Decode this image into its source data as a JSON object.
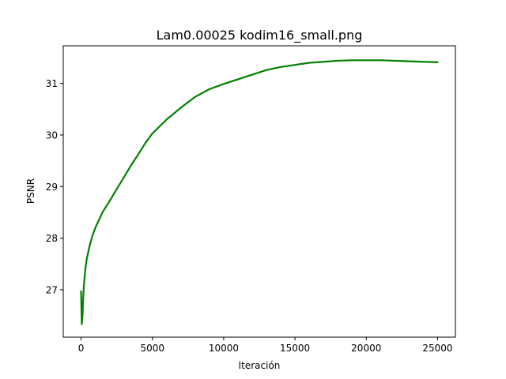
{
  "chart_data": {
    "type": "line",
    "title": "Lam0.00025 kodim16_small.png",
    "xlabel": "Iteración",
    "ylabel": "PSNR",
    "xlim": [
      -1250,
      26250
    ],
    "ylim": [
      26.08,
      31.73
    ],
    "xticks": [
      0,
      5000,
      10000,
      15000,
      20000,
      25000
    ],
    "xtick_labels": [
      "0",
      "5000",
      "10000",
      "15000",
      "20000",
      "25000"
    ],
    "yticks": [
      27,
      28,
      29,
      30,
      31
    ],
    "ytick_labels": [
      "27",
      "28",
      "29",
      "30",
      "31"
    ],
    "grid": false,
    "legend": null,
    "series": [
      {
        "color": "#008000",
        "x": [
          0,
          50,
          100,
          150,
          200,
          300,
          400,
          600,
          800,
          1000,
          1500,
          2000,
          2500,
          3000,
          3500,
          4000,
          4500,
          5000,
          6000,
          7000,
          8000,
          9000,
          10000,
          11000,
          12000,
          13000,
          14000,
          15000,
          16000,
          17000,
          18000,
          19000,
          20000,
          21000,
          22000,
          23000,
          24000,
          25000
        ],
        "y": [
          26.97,
          26.33,
          26.5,
          26.85,
          27.1,
          27.4,
          27.6,
          27.85,
          28.05,
          28.2,
          28.5,
          28.72,
          28.95,
          29.18,
          29.41,
          29.62,
          29.84,
          30.03,
          30.3,
          30.53,
          30.74,
          30.89,
          30.99,
          31.08,
          31.17,
          31.26,
          31.32,
          31.36,
          31.4,
          31.42,
          31.44,
          31.45,
          31.45,
          31.45,
          31.44,
          31.43,
          31.42,
          31.41
        ]
      }
    ]
  }
}
